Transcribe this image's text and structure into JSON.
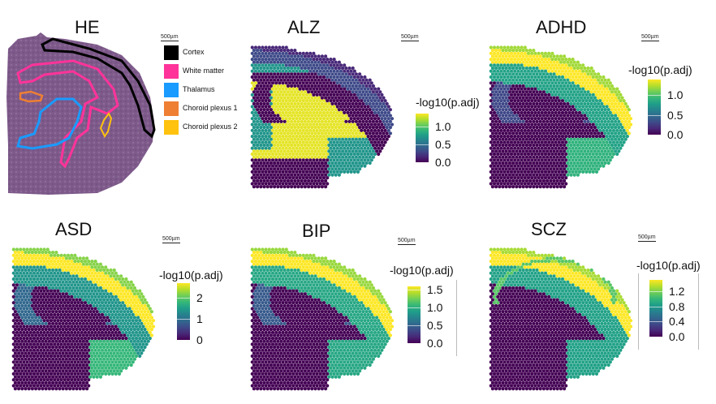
{
  "chart_data": [
    {
      "type": "heatmap",
      "title": "HE",
      "subtype": "histology image with annotated regions",
      "scalebar": "500µm",
      "legend": [
        {
          "label": "Cortex",
          "color": "#000000"
        },
        {
          "label": "White matter",
          "color": "#ff3399"
        },
        {
          "label": "Thalamus",
          "color": "#1a9bff"
        },
        {
          "label": "Choroid plexus 1",
          "color": "#ee7f33"
        },
        {
          "label": "Choroid plexus 2",
          "color": "#ffc20e"
        }
      ]
    },
    {
      "type": "heatmap",
      "title": "ALZ",
      "scalebar": "500µm",
      "colorbar_title": "-log10(p.adj)",
      "colormap": "viridis",
      "range": [
        0,
        1.35
      ],
      "ticks": [
        "1.0",
        "0.5",
        "0.0"
      ],
      "tick_values": [
        1.0,
        0.5,
        0.0
      ],
      "regions": {
        "cortex": 0.3,
        "outer_cortex": 0.15,
        "white_matter": 1.3,
        "thalamus": 1.3,
        "hippocampus_band": 0.0,
        "inner_ring": 0.7,
        "lower": 0.7,
        "ventral": 0.0
      }
    },
    {
      "type": "heatmap",
      "title": "ADHD",
      "scalebar": "500µm",
      "colorbar_title": "-log10(p.adj)",
      "colormap": "viridis",
      "range": [
        0,
        1.4
      ],
      "ticks": [
        "1.0",
        "0.5",
        "0.0"
      ],
      "tick_values": [
        1.0,
        0.5,
        0.0
      ],
      "regions": {
        "cortex_outer": 1.2,
        "cortex_band": 1.4,
        "cortex_inner": 0.8,
        "hippocampus": 0.3,
        "thalamus": 0.0,
        "lower": 0.9
      }
    },
    {
      "type": "heatmap",
      "title": "ASD",
      "scalebar": "500µm",
      "colorbar_title": "-log10(p.adj)",
      "colormap": "viridis",
      "range": [
        0,
        2.7
      ],
      "ticks": [
        "2",
        "1",
        "0"
      ],
      "tick_values": [
        2,
        1,
        0
      ],
      "regions": {
        "cortex_outer": 2.2,
        "cortex_band": 2.7,
        "cortex_inner": 1.4,
        "hippocampus": 0.9,
        "thalamus": 0.0,
        "lower": 1.8
      }
    },
    {
      "type": "heatmap",
      "title": "BIP",
      "scalebar": "500µm",
      "colorbar_title": "-log10(p.adj)",
      "colormap": "viridis",
      "range": [
        0,
        1.6
      ],
      "ticks": [
        "1.5",
        "1.0",
        "0.5",
        "0.0"
      ],
      "tick_values": [
        1.5,
        1.0,
        0.5,
        0.0
      ],
      "regions": {
        "cortex_outer": 1.35,
        "cortex_band": 1.6,
        "cortex_inner": 0.95,
        "hippocampus": 0.45,
        "thalamus": 0.0,
        "lower": 0.95
      }
    },
    {
      "type": "heatmap",
      "title": "SCZ",
      "scalebar": "500µm",
      "colorbar_title": "-log10(p.adj)",
      "colormap": "viridis",
      "range": [
        0,
        1.5
      ],
      "ticks": [
        "1.2",
        "0.8",
        "0.4",
        "0.0"
      ],
      "tick_values": [
        1.2,
        0.8,
        0.4,
        0.0
      ],
      "regions": {
        "cortex_outer": 1.3,
        "cortex_band": 1.5,
        "cortex_inner": 0.85,
        "hippocampus": 0.0,
        "hippocampus_line": 1.1,
        "thalamus": 0.0,
        "lower": 0.85
      }
    }
  ]
}
